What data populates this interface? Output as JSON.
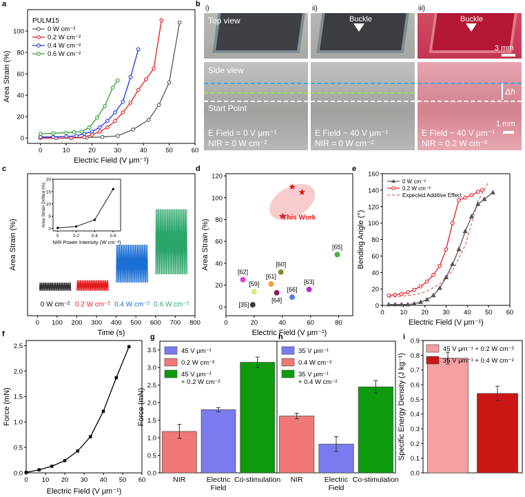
{
  "chart_data": [
    {
      "panel": "a",
      "type": "line",
      "xlabel": "Electric Field (V μm⁻¹)",
      "ylabel": "Area Strain (%)",
      "xlim": [
        -5,
        60
      ],
      "ylim": [
        -5,
        120
      ],
      "xticks": [
        0,
        10,
        20,
        30,
        40,
        50,
        60
      ],
      "yticks": [
        0,
        20,
        40,
        60,
        80,
        100
      ],
      "legend_title": "PULM15",
      "series": [
        {
          "name": "0 W cm⁻²",
          "color": "#555555",
          "x": [
            0,
            6,
            12,
            18,
            24,
            30,
            36,
            42,
            46,
            50,
            54
          ],
          "y": [
            0,
            0,
            0,
            0.5,
            1,
            2,
            8,
            17,
            31,
            52,
            108
          ]
        },
        {
          "name": "0.2 W cm⁻²",
          "color": "#e41a1c",
          "x": [
            0,
            6,
            12,
            17,
            20,
            23,
            26,
            29,
            32,
            35,
            38,
            41,
            44,
            47
          ],
          "y": [
            0,
            0,
            0,
            1,
            3,
            6,
            10,
            16,
            24,
            33,
            45,
            55,
            65,
            110
          ]
        },
        {
          "name": "0.4 W cm⁻²",
          "color": "#1a35e4",
          "x": [
            0,
            5,
            10,
            14,
            17,
            20,
            23,
            26,
            29,
            32,
            35,
            38
          ],
          "y": [
            1,
            1,
            1.5,
            2,
            4,
            6,
            10,
            16,
            24,
            34,
            57,
            83
          ]
        },
        {
          "name": "0.6 W cm⁻²",
          "color": "#2e9a2e",
          "x": [
            0,
            5,
            10,
            13,
            16,
            19,
            22,
            25,
            28,
            30
          ],
          "y": [
            4,
            4.5,
            5,
            5.5,
            6,
            10,
            19,
            30,
            47,
            54
          ]
        }
      ]
    },
    {
      "panel": "c",
      "type": "line",
      "xlabel": "Time (s)",
      "ylabel": "Area Strain (%)",
      "xlim": [
        -50,
        800
      ],
      "ylim": [
        -20,
        100
      ],
      "xticks": [
        0,
        100,
        200,
        300,
        400,
        500,
        600,
        700,
        800
      ],
      "yticks": [],
      "segments": [
        {
          "label": "0 W cm⁻²",
          "color": "#333333",
          "t0": 10,
          "t1": 170,
          "low": 1,
          "high": 8
        },
        {
          "label": "0.2 W cm⁻²",
          "color": "#e41a1c",
          "t0": 200,
          "t1": 360,
          "low": 1,
          "high": 10
        },
        {
          "label": "0.4 W cm⁻²",
          "color": "#1a6fd4",
          "t0": 400,
          "t1": 560,
          "low": 8,
          "high": 40
        },
        {
          "label": "0.6 W cm⁻²",
          "color": "#2aa66a",
          "t0": 600,
          "t1": 760,
          "low": 15,
          "high": 70
        }
      ],
      "inset": {
        "xlabel": "NIR Power Intensity (W cm⁻²)",
        "ylabel": "Area Strain Drifted (%)",
        "xlim": [
          -0.05,
          0.68
        ],
        "ylim": [
          -1,
          20
        ],
        "xticks": [
          0,
          0.2,
          0.4,
          0.6
        ],
        "yticks": [
          0,
          5,
          10,
          15,
          20
        ],
        "x": [
          0,
          0.2,
          0.4,
          0.6
        ],
        "y": [
          0.2,
          0.8,
          3.5,
          16
        ]
      }
    },
    {
      "panel": "d",
      "type": "scatter",
      "xlabel": "Electric Field (V μm⁻¹)",
      "ylabel": "Area Strain (%)",
      "xlim": [
        0,
        90
      ],
      "ylim": [
        -8,
        122
      ],
      "xticks": [
        0,
        20,
        40,
        60,
        80
      ],
      "yticks": [
        0,
        20,
        40,
        60,
        80,
        100,
        120
      ],
      "highlight_label": "This Work",
      "this_work": [
        {
          "x": 40,
          "y": 83
        },
        {
          "x": 47,
          "y": 110
        },
        {
          "x": 54,
          "y": 105
        }
      ],
      "points": [
        {
          "label": "[35]",
          "x": 19,
          "y": 2,
          "color": "#3c3c3c"
        },
        {
          "label": "[59]",
          "x": 20,
          "y": 14,
          "color": "#ccf07a"
        },
        {
          "label": "[62]",
          "x": 12,
          "y": 25,
          "color": "#e33bd0"
        },
        {
          "label": "[61]",
          "x": 32,
          "y": 21,
          "color": "#f29b39"
        },
        {
          "label": "[60]",
          "x": 39,
          "y": 32,
          "color": "#8a8a2e"
        },
        {
          "label": "[64]",
          "x": 36,
          "y": 13,
          "color": "#8a1a5a"
        },
        {
          "label": "[66]",
          "x": 47,
          "y": 9,
          "color": "#5a7be0"
        },
        {
          "label": "[63]",
          "x": 59,
          "y": 16,
          "color": "#b22fc9"
        },
        {
          "label": "[65]",
          "x": 79,
          "y": 48,
          "color": "#45b042"
        }
      ]
    },
    {
      "panel": "e",
      "type": "line",
      "xlabel": "Electric Field (V μm⁻¹)",
      "ylabel": "Bending Angle (°)",
      "xlim": [
        0,
        60
      ],
      "ylim": [
        0,
        160
      ],
      "xticks": [
        0,
        10,
        20,
        30,
        40,
        50,
        60
      ],
      "yticks": [
        0,
        20,
        40,
        60,
        80,
        100,
        120,
        140,
        160
      ],
      "series": [
        {
          "name": "0 W cm⁻²",
          "color": "#555555",
          "x": [
            3,
            6,
            9,
            12,
            15,
            18,
            21,
            24,
            27,
            30,
            33,
            36,
            39,
            42,
            45,
            48,
            52
          ],
          "y": [
            1,
            1,
            1,
            1,
            2,
            4,
            7,
            12,
            21,
            34,
            50,
            68,
            90,
            108,
            123,
            129,
            137
          ]
        },
        {
          "name": "0.2 W cm⁻²",
          "color": "#e41a1c",
          "x": [
            3,
            6,
            9,
            12,
            15,
            18,
            21,
            24,
            27,
            30,
            33,
            36,
            39,
            42,
            45,
            47
          ],
          "y": [
            12,
            13,
            14,
            16,
            19,
            23,
            29,
            37,
            48,
            68,
            100,
            128,
            131,
            134,
            138,
            140
          ]
        }
      ],
      "expected": {
        "name": "Expected Additive Effect",
        "color": "#e86060",
        "x": [
          3,
          9,
          15,
          21,
          27,
          33,
          39,
          45,
          50
        ],
        "y": [
          10,
          11,
          13,
          17,
          26,
          42,
          73,
          127,
          150
        ]
      }
    },
    {
      "panel": "f",
      "type": "line",
      "xlabel": "Electric Field (V μm⁻¹)",
      "ylabel": "Force (mN)",
      "xlim": [
        0,
        60
      ],
      "ylim": [
        0,
        2.6
      ],
      "xticks": [
        0,
        10,
        20,
        30,
        40,
        50,
        60
      ],
      "yticks": [
        0.0,
        0.5,
        1.0,
        1.5,
        2.0,
        2.5
      ],
      "series": [
        {
          "name": "Force",
          "color": "#000000",
          "x": [
            0,
            6.7,
            13.3,
            20,
            26.7,
            33.3,
            40,
            46.7,
            53.3
          ],
          "y": [
            0.01,
            0.06,
            0.13,
            0.24,
            0.43,
            0.71,
            1.21,
            1.87,
            2.48
          ]
        }
      ]
    },
    {
      "panel": "g",
      "type": "bar",
      "ylabel": "Force (mN)",
      "ylim": [
        0,
        3.75
      ],
      "yticks": [
        0.0,
        0.5,
        1.0,
        1.5,
        2.0,
        2.5,
        3.0,
        3.5
      ],
      "categories": [
        "NIR",
        "Electric Field",
        "Co-stimulation"
      ],
      "values": [
        1.18,
        1.8,
        3.15
      ],
      "errors": [
        0.2,
        0.06,
        0.15
      ],
      "colors": [
        "#f07878",
        "#7b7bf0",
        "#0d9b0d"
      ],
      "legend": [
        "45 V μm⁻¹",
        "0.2 W cm⁻²",
        "45 V μm⁻¹ + 0.2 W cm⁻²"
      ]
    },
    {
      "panel": "h",
      "type": "bar",
      "ylabel": "",
      "ylim": [
        0,
        3.75
      ],
      "yticks": [],
      "categories": [
        "NIR",
        "Electric Field",
        "Co-stimulation"
      ],
      "values": [
        1.62,
        0.82,
        2.45
      ],
      "errors": [
        0.08,
        0.21,
        0.18
      ],
      "colors": [
        "#f07878",
        "#7b7bf0",
        "#0d9b0d"
      ],
      "legend": [
        "35 V μm⁻¹",
        "0.4 W cm⁻²",
        "35 V μm⁻¹ + 0.4 W cm⁻²"
      ]
    },
    {
      "panel": "i",
      "type": "bar",
      "ylabel": "Specific Energy Density (J kg⁻¹)",
      "ylim": [
        0,
        0.9
      ],
      "yticks": [
        0.0,
        0.1,
        0.2,
        0.3,
        0.4,
        0.5,
        0.6,
        0.7,
        0.8,
        0.9
      ],
      "categories": [
        "45 V μm⁻¹ + 0.2 W cm⁻²",
        "35 V μm⁻¹ + 0.4 W cm⁻²"
      ],
      "values": [
        0.78,
        0.54
      ],
      "errors": [
        0.04,
        0.05
      ],
      "colors": [
        "#f4a0a0",
        "#cc1616"
      ]
    }
  ],
  "panel_b": {
    "letter": "b",
    "columns": [
      "i)",
      "ii)",
      "iii)"
    ],
    "top_view_label": "Top view",
    "side_view_label": "Side view",
    "start_point_label": "Start Point",
    "buckle_label": "Buckle",
    "delta_h_label": "Δh",
    "scale_top": "3 mm",
    "scale_bottom": "1 mm",
    "captions": [
      {
        "line1": "E Field = 0 V μm⁻¹",
        "line2": "NIR = 0 W cm⁻²"
      },
      {
        "line1": "E Field ~ 40 V μm⁻¹",
        "line2": "NIR = 0 W cm⁻²"
      },
      {
        "line1": "E Field ~ 40 V μm⁻¹",
        "line2": "NIR = 0.2 W cm⁻²"
      }
    ],
    "colors": {
      "blue_line": "#3aa8e8",
      "green_line": "#9ee04a",
      "white_line": "#ffffff"
    }
  },
  "panel_letters": [
    "a",
    "c",
    "d",
    "e",
    "f",
    "g",
    "h",
    "i"
  ]
}
